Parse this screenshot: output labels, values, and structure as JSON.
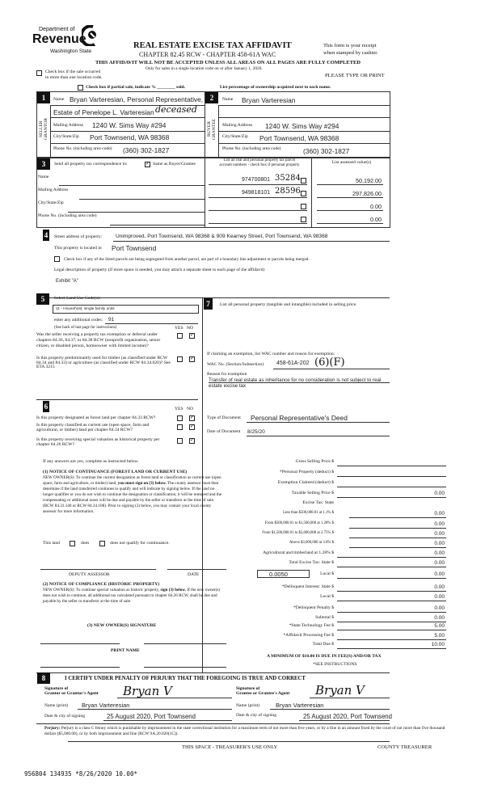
{
  "header": {
    "logo_line1": "Department of",
    "logo_line2": "Revenue",
    "logo_line3": "Washington State",
    "title": "REAL ESTATE EXCISE TAX AFFIDAVIT",
    "chapter": "CHAPTER 82.45 RCW - CHAPTER 458-61A WAC",
    "warning": "THIS AFFIDAVIT WILL NOT BE ACCEPTED UNLESS ALL AREAS ON ALL PAGES ARE FULLY COMPLETED",
    "only_for": "Only for sales in a single location code on or after January 1, 2020.",
    "receipt1": "This form is your receipt",
    "receipt2": "when stamped by cashier.",
    "please": "PLEASE TYPE OR PRINT",
    "multi_loc1": "Check box if the sale occurred",
    "multi_loc2": "in more than one location code.",
    "partial": "Check box if partial sale, indicate % ________ sold.",
    "percentage": "List percentage of ownership acquired next to each name."
  },
  "s1": {
    "num": "1",
    "side": "SELLER GRANTOR",
    "name_label": "Name",
    "name": "Bryan Varteresian, Personal Representative,",
    "name2": "Estate of Penelope L. Varteresian",
    "handwritten": "deceased",
    "mail_label": "Mailing Address",
    "mail": "1240 W. Sims Way #294",
    "city_label": "City/State/Zip",
    "city": "Port Townsend, WA 98368",
    "phone_label": "Phone No. (including area code)",
    "phone": "(360) 302-1827"
  },
  "s2": {
    "num": "2",
    "side": "BUYER GRANTEE",
    "name_label": "Name",
    "name": "Bryan Varteresian",
    "mail_label": "Mailing Address",
    "mail": "1240 W. Sims Way #294",
    "city_label": "City/State/Zip",
    "city": "Port Townsend, WA 98368",
    "phone_label": "Phone No. (including area code)",
    "phone": "(360) 302-1827"
  },
  "s3": {
    "num": "3",
    "send": "Send all property tax correspondence to:",
    "same": "Same as Buyer/Grantee",
    "same_checked": true,
    "name": "Name",
    "mail": "Mailing Address",
    "city": "City/State/Zip",
    "phone": "Phone No. (including area code)",
    "parcel_head1": "List all real and personal property tax parcel",
    "parcel_head2": "account numbers - check box if personal property",
    "value_head": "List assessed value(s)",
    "parcels": [
      {
        "number": "974700801",
        "hand": "35284",
        "value": "50,192.00"
      },
      {
        "number": "949818101",
        "hand": "28596",
        "value": "297,826.00"
      },
      {
        "number": "",
        "hand": "",
        "value": "0.00"
      },
      {
        "number": "",
        "hand": "",
        "value": "0.00"
      }
    ]
  },
  "s4": {
    "num": "4",
    "street_label": "Street address of property:",
    "street": "Unimproved, Port Townsend, WA 98368 & 909 Kearney Street, Port Townsend, WA 98368",
    "located_label": "This property is located in",
    "located": "Port Townsend",
    "segregated": "Check box if any of the listed parcels are being segregated from another parcel, are part of a boundary line adjustment or parcels being merged.",
    "legal_label": "Legal description of property (if more space is needed, you may attach a separate sheet to each page of the affidavit)",
    "legal": "Exhibit \"A\""
  },
  "s5": {
    "num": "5",
    "select": "Select Land Use Code(s):",
    "code": "11 - Household, single family units",
    "additional_label": "enter any additional codes:",
    "additional": "91",
    "see_back": "(See back of last page for instructions)",
    "yes": "YES",
    "no": "NO",
    "q1": "Was the seller receiving a property tax exemption or deferral under chapters 84.36, 84.37, or 84.38 RCW (nonprofit organization, senior citizen, or disabled person, homeowner with limited income)?",
    "q2": "Is this property predominantly used for timber (as classified under RCW 84.34 and 84.33) or agriculture (as classified under RCW 84.34.020)? See ETA 3215"
  },
  "s6": {
    "num": "6",
    "yes": "YES",
    "no": "NO",
    "q1": "Is this property designated as forest land per chapter 84.33 RCW?",
    "q2": "Is this property classified as current use (open space, farm and agricultural, or timber) land per chapter 84.34 RCW?",
    "q3": "Is this property receiving special valuation as historical property per chapter 84.26 RCW?",
    "if_yes": "If any answers are yes, complete as instructed below.",
    "notice1_head": "(1) NOTICE OF CONTINUANCE (FOREST LAND OR CURRENT USE)",
    "notice1_a": "NEW OWNER(S): To continue the current designation as forest land or classification as current use (open space, farm and agriculture, or timber) land, ",
    "notice1_bold": "you must sign on (3) below.",
    "notice1_b": " The county assessor must then determine if the land transferred continues to qualify and will indicate by signing below. If the land no longer qualifies or you do not wish to continue the designation or classification, it will be removed and the compensating or additional taxes will be due and payable by the seller or transferor at the time of sale. (RCW 84.33.140 or RCW 84.34.108). Prior to signing (3) below, you may contact your local county assessor for more information.",
    "this_land": "This land",
    "does": "does",
    "does_not": "does not qualify for continuance.",
    "deputy": "DEPUTY ASSESSOR",
    "date": "DATE",
    "notice2_head": "(2) NOTICE OF COMPLIANCE (HISTORIC PROPERTY)",
    "notice2_a": "NEW OWNER(S): To continue special valuation as historic property, ",
    "notice2_bold": "sign (3) below.",
    "notice2_b": " If the new owner(s) does not wish to continue, all additional tax calculated pursuant to chapter 84.26 RCW, shall be due and payable by the seller or transferor at the time of sale.",
    "sig_head": "(3) NEW OWNER(S) SIGNATURE",
    "print_name": "PRINT NAME"
  },
  "s7": {
    "num": "7",
    "list": "List all personal property (tangible and intangible) included in selling price.",
    "claim": "If claiming an exemption, list WAC number and reason for exemption:",
    "wac_label": "WAC No. (Section/Subsection)",
    "wac": "458-61A-202",
    "wac_hand": "(6)(F)",
    "reason_label": "Reason for exemption",
    "reason": "Transfer of real estate as inheritance for no consideration is not subject to real estate excise tax",
    "doc_type_label": "Type of Document",
    "doc_type": "Personal Representative's Deed",
    "doc_date_label": "Date of Document",
    "doc_date": "8/25/20",
    "tax_rows": [
      {
        "label": "Gross Selling Price $",
        "value": ""
      },
      {
        "label": "*Personal Property (deduct) $",
        "value": ""
      },
      {
        "label": "Exemption Claimed (deduct) $",
        "value": ""
      },
      {
        "label": "Taxable Selling Price $",
        "value": "0.00"
      },
      {
        "label": "Excise Tax: State",
        "value": null
      },
      {
        "label": "Less than $500,000.01 at 1.1% $",
        "value": "0.00"
      },
      {
        "label": "From $500,000.01 to $1,500,000 at 1.28% $",
        "value": "0.00"
      },
      {
        "label": "From $1,500,000.01 to $3,000,000 at 2.75% $",
        "value": "0.00"
      },
      {
        "label": "Above $3,000,000 at 3.0% $",
        "value": "0.00"
      },
      {
        "label": "Agricultural and timberland at 1.28% $",
        "value": "0.00"
      },
      {
        "label": "Total Excise Tax: State $",
        "value": "0.00"
      },
      {
        "label": "Local $",
        "value": "0.00"
      },
      {
        "label": "*Delinquent Interest: State $",
        "value": "0.00"
      },
      {
        "label": "Local $",
        "value": "0.00"
      },
      {
        "label": "*Delinquent Penalty $",
        "value": "0.00"
      },
      {
        "label": "Subtotal $",
        "value": "0.00"
      },
      {
        "label": "*State Technology Fee $",
        "value": "5.00"
      },
      {
        "label": "*Affidavit Processing Fee $",
        "value": "5.00"
      },
      {
        "label": "Total Due $",
        "value": "10.00"
      }
    ],
    "local_rate": "0.0050",
    "minimum": "A MINIMUM OF $10.00 IS DUE IN FEE(S) AND/OR TAX",
    "see_instr": "*SEE INSTRUCTIONS"
  },
  "s8": {
    "num": "8",
    "certify": "I CERTIFY UNDER PENALTY OF PERJURY THAT THE FOREGOING IS TRUE AND CORRECT",
    "sig_grantor_1": "Signature of",
    "sig_grantor_2": "Grantor or Grantor's Agent",
    "sig_grantee_1": "Signature of",
    "sig_grantee_2": "Grantee or Grantee's Agent",
    "signature": "Bryan V",
    "name_label": "Name (print)",
    "grantor_name": "Bryan Varteresian",
    "grantee_name": "Bryan Varteresian",
    "date_label": "Date & city of signing",
    "grantor_date": "25 August 2020, Port Townsend",
    "grantee_date": "25 August 2020, Port Townsend",
    "perjury_label": "Perjury:",
    "perjury": "Perjury is a class C felony which is punishable by imprisonment in the state correctional institution for a maximum term of not more than five years, or by a fine in an amount fixed by the court of not more than five thousand dollars ($5,000.00), or by both imprisonment and fine (RCW 9A.20.020(1C)).",
    "treasurer_space": "THIS SPACE - TREASURER'S USE ONLY",
    "county_treasurer": "COUNTY TREASURER"
  },
  "stamp": "956804 134935 *8/26/2020 10.00*"
}
